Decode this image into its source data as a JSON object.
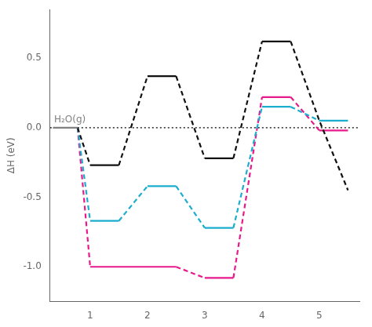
{
  "chart_data": {
    "type": "line",
    "ylabel": "ΔH (eV)",
    "xlim": [
      0.3,
      5.7
    ],
    "ylim": [
      -1.25,
      0.85
    ],
    "xticks": [
      1,
      2,
      3,
      4,
      5
    ],
    "yticks": [
      {
        "value": -1.0,
        "label": "-1.0"
      },
      {
        "value": -0.5,
        "label": "-0.5"
      },
      {
        "value": 0.0,
        "label": "0.0"
      },
      0.5
    ],
    "grid": false,
    "series": [
      {
        "x": [
          0.3,
          5.7
        ],
        "values": [
          0.0,
          0.0
        ],
        "color": "black",
        "line_style": "dotted"
      },
      {
        "x": [
          0.78,
          1.0,
          1.5,
          2.0,
          2.5,
          3.0,
          3.5,
          4.0,
          4.5,
          5.0,
          5.5
        ],
        "values": [
          0.0,
          -1.0,
          -1.0,
          -1.0,
          -1.0,
          -1.08,
          -1.08,
          0.22,
          0.22,
          -0.02,
          -0.02
        ],
        "color": "#e8198b",
        "line_style": "dashed"
      },
      {
        "x": [
          0.78,
          1.0,
          1.5,
          2.0,
          2.5,
          3.0,
          3.5,
          4.0,
          4.5,
          5.0,
          5.5
        ],
        "values": [
          0.0,
          -0.67,
          -0.67,
          -0.42,
          -0.42,
          -0.72,
          -0.72,
          0.15,
          0.15,
          0.05,
          0.05
        ],
        "color": "#1aadce",
        "line_style": "dashed"
      },
      {
        "x": [
          0.78,
          1.0,
          1.5,
          2.0,
          2.5,
          3.0,
          3.5,
          4.0,
          4.5,
          5.0,
          5.5
        ],
        "values": [
          0.0,
          -0.27,
          -0.27,
          0.37,
          0.37,
          -0.22,
          -0.22,
          0.62,
          0.62,
          0.05,
          -0.45
        ],
        "color": "#111111",
        "line_style": "dashed"
      },
      {
        "x": [
          0.35,
          0.78
        ],
        "values": [
          0.0,
          0.0
        ],
        "color": "gray",
        "line_style": "solid"
      }
    ],
    "annotations": [
      {
        "text": "H₂O(g)",
        "x": 0.37,
        "y": 0.04,
        "color": "gray"
      }
    ]
  }
}
